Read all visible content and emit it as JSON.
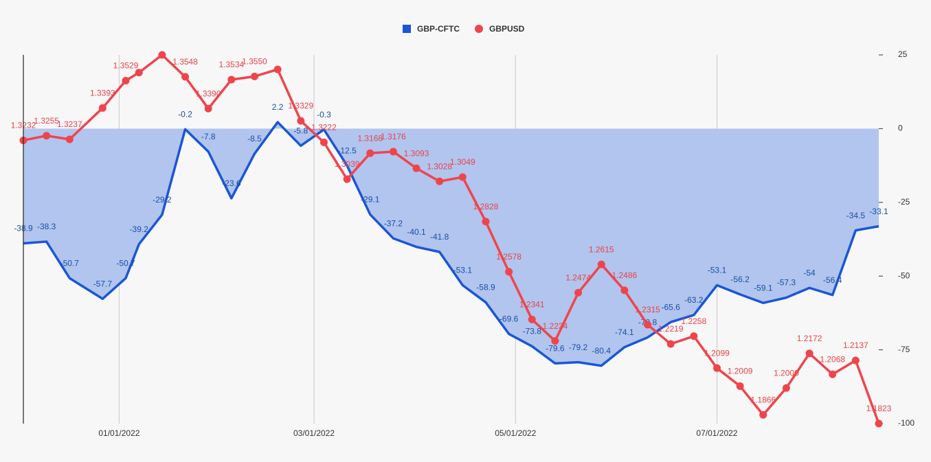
{
  "chart_data": {
    "type": "line",
    "x": [
      "2021-12-03",
      "2021-12-10",
      "2021-12-17",
      "2021-12-27",
      "2022-01-03",
      "2022-01-07",
      "2022-01-14",
      "2022-01-21",
      "2022-01-28",
      "2022-02-04",
      "2022-02-11",
      "2022-02-18",
      "2022-02-25",
      "2022-03-04",
      "2022-03-11",
      "2022-03-18",
      "2022-03-25",
      "2022-04-01",
      "2022-04-08",
      "2022-04-15",
      "2022-04-22",
      "2022-04-29",
      "2022-05-06",
      "2022-05-13",
      "2022-05-20",
      "2022-05-27",
      "2022-06-03",
      "2022-06-10",
      "2022-06-17",
      "2022-06-24",
      "2022-07-01",
      "2022-07-08",
      "2022-07-15",
      "2022-07-22",
      "2022-07-29",
      "2022-08-05",
      "2022-08-12",
      "2022-08-19"
    ],
    "xlim": [
      "2021-12-03",
      "2022-08-19"
    ],
    "xticks": [
      {
        "value": "2022-01-01",
        "label": "01/01/2022"
      },
      {
        "value": "2022-03-01",
        "label": "03/01/2022"
      },
      {
        "value": "2022-05-01",
        "label": "05/01/2022"
      },
      {
        "value": "2022-07-01",
        "label": "07/01/2022"
      }
    ],
    "ylim": [
      -100,
      25
    ],
    "yticks": [
      -100,
      -75,
      -50,
      -25,
      0,
      25
    ],
    "y2lim": [
      1.1823,
      1.3657
    ],
    "grid": true,
    "legend": "top",
    "series": [
      {
        "name": "GBP-CFTC",
        "color": "#1a56d6",
        "fill_color": "#b1c5ee",
        "style": "area",
        "values": [
          -38.9,
          -38.3,
          -50.7,
          -57.7,
          -50.7,
          -39.2,
          -29.2,
          -0.2,
          -7.8,
          -23.6,
          -8.5,
          2.2,
          -5.8,
          -0.3,
          -12.5,
          -29.1,
          -37.2,
          -40.1,
          -41.8,
          -53.1,
          -58.9,
          -69.6,
          -73.8,
          -79.6,
          -79.2,
          -80.4,
          -74.1,
          -70.8,
          -65.6,
          -63.2,
          -53.1,
          -56.2,
          -59.1,
          -57.3,
          -54,
          -56.4,
          -34.5,
          -33.1
        ]
      },
      {
        "name": "GBPUSD",
        "color": "#f0444c",
        "style": "line-markers",
        "axis": "y2",
        "values": [
          1.3232,
          1.3255,
          1.3237,
          1.3393,
          1.3529,
          1.3569,
          1.3657,
          1.3548,
          1.339,
          1.3534,
          1.355,
          1.3585,
          1.3329,
          1.3222,
          1.3039,
          1.3168,
          1.3176,
          1.3093,
          1.3028,
          1.3049,
          1.2828,
          1.2578,
          1.2341,
          1.2234,
          1.2474,
          1.2615,
          1.2486,
          1.2315,
          1.2219,
          1.2258,
          1.2099,
          1.2009,
          1.1866,
          1.2,
          1.2172,
          1.2068,
          1.2137,
          1.1823
        ],
        "value_labels": [
          "1.3232",
          "1.3255",
          "1.3237",
          "1.3393",
          "1.3529",
          null,
          null,
          "1.3548",
          "1.3390",
          "1.3534",
          "1.3550",
          null,
          "1.3329",
          "1.3222",
          "1.3039",
          "1.3168",
          "1.3176",
          "1.3093",
          "1.3028",
          "1.3049",
          "1.2828",
          "1.2578",
          "1.2341",
          "1.2234",
          "1.2474",
          "1.2615",
          "1.2486",
          "1.2315",
          "1.2219",
          "1.2258",
          "1.2099",
          "1.2009",
          "1.1866",
          "1.2000",
          "1.2172",
          "1.2068",
          "1.2137",
          "1.1823"
        ]
      }
    ]
  }
}
